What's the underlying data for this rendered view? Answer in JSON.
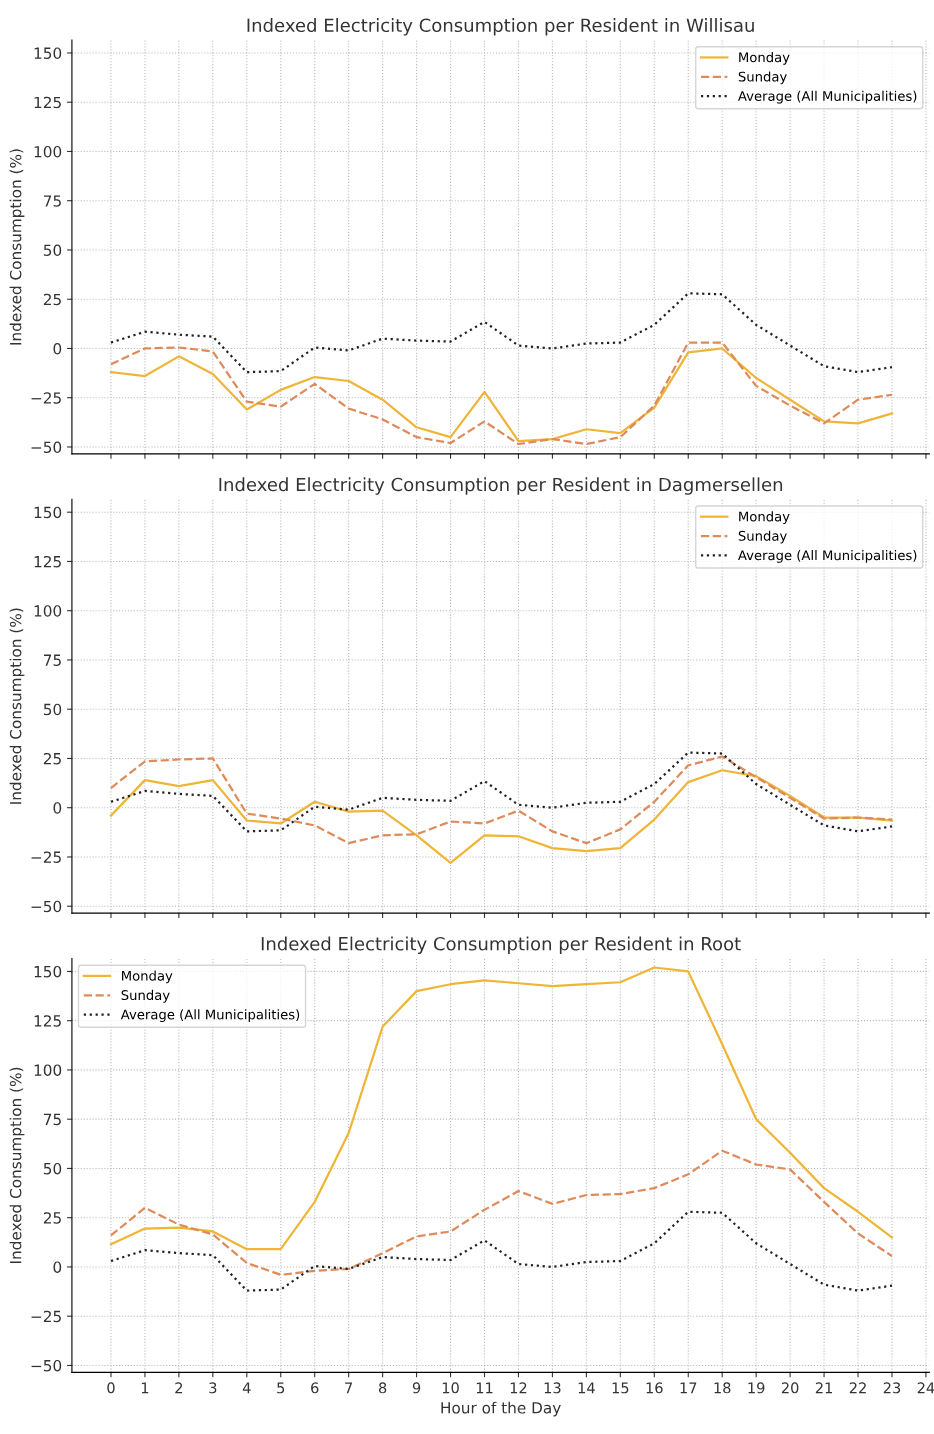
{
  "chart_data": [
    {
      "type": "line",
      "title": "Indexed Electricity Consumption per Resident in Willisau",
      "ylabel": "Indexed Consumption (%)",
      "x": [
        0,
        1,
        2,
        3,
        4,
        5,
        6,
        7,
        8,
        9,
        10,
        11,
        12,
        13,
        14,
        15,
        16,
        17,
        18,
        19,
        20,
        21,
        22,
        23
      ],
      "xlim": [
        -1.15,
        24.1
      ],
      "ylim": [
        -53.5,
        156.5
      ],
      "xticks": [
        0,
        1,
        2,
        3,
        4,
        5,
        6,
        7,
        8,
        9,
        10,
        11,
        12,
        13,
        14,
        15,
        16,
        17,
        18,
        19,
        20,
        21,
        22,
        23,
        24
      ],
      "yticks": [
        -50,
        -25,
        0,
        25,
        50,
        75,
        100,
        125,
        150
      ],
      "tick_labels": "y",
      "grid": true,
      "legend": "top right",
      "marker": "none",
      "series": [
        {
          "name": "Monday",
          "color": "#eeb536",
          "line_style": "solid",
          "values": [
            -12,
            -14,
            -4,
            -13,
            -31,
            -21,
            -14.5,
            -16.5,
            -26,
            -40,
            -45,
            -22,
            -47,
            -46,
            -41,
            -43,
            -30,
            -2,
            0,
            -15,
            -26,
            -37,
            -38,
            -33
          ]
        },
        {
          "name": "Sunday",
          "color": "#de8a5a",
          "line_style": "dashed",
          "values": [
            -8,
            0,
            0.5,
            -1.5,
            -27,
            -29.5,
            -18,
            -30.5,
            -36,
            -45,
            -48,
            -37,
            -48.5,
            -46,
            -48.5,
            -45,
            -29,
            3,
            3,
            -19,
            -29,
            -38,
            -26,
            -23.5
          ]
        },
        {
          "name": "Average (All Municipalities)",
          "color": "#222222",
          "line_style": "dotted",
          "values": [
            3,
            8.5,
            7,
            6,
            -12,
            -11.5,
            0.5,
            -1,
            5,
            4,
            3.5,
            13.5,
            1.5,
            0,
            2.5,
            3,
            12,
            28,
            27.5,
            12,
            1.5,
            -9,
            -12,
            -9.5
          ]
        }
      ]
    },
    {
      "type": "line",
      "title": "Indexed Electricity Consumption per Resident in Dagmersellen",
      "ylabel": "Indexed Consumption (%)",
      "x": [
        0,
        1,
        2,
        3,
        4,
        5,
        6,
        7,
        8,
        9,
        10,
        11,
        12,
        13,
        14,
        15,
        16,
        17,
        18,
        19,
        20,
        21,
        22,
        23
      ],
      "xlim": [
        -1.15,
        24.1
      ],
      "ylim": [
        -53.5,
        156.5
      ],
      "xticks": [
        0,
        1,
        2,
        3,
        4,
        5,
        6,
        7,
        8,
        9,
        10,
        11,
        12,
        13,
        14,
        15,
        16,
        17,
        18,
        19,
        20,
        21,
        22,
        23,
        24
      ],
      "yticks": [
        -50,
        -25,
        0,
        25,
        50,
        75,
        100,
        125,
        150
      ],
      "tick_labels": "y",
      "grid": true,
      "legend": "top right",
      "marker": "none",
      "series": [
        {
          "name": "Monday",
          "color": "#eeb536",
          "line_style": "solid",
          "values": [
            -4,
            14,
            11,
            14,
            -6.5,
            -8,
            3,
            -2,
            -1.5,
            -14,
            -28,
            -14,
            -14.5,
            -20.5,
            -22,
            -20.5,
            -6,
            13,
            19,
            16,
            6,
            -5,
            -5,
            -6.5
          ]
        },
        {
          "name": "Sunday",
          "color": "#de8a5a",
          "line_style": "dashed",
          "values": [
            10,
            23.5,
            24.5,
            25,
            -3,
            -5.5,
            -9,
            -18,
            -14,
            -13.5,
            -7,
            -8,
            -1.5,
            -12,
            -18,
            -11,
            3,
            21.5,
            26,
            15.5,
            5,
            -5.5,
            -5,
            -6
          ]
        },
        {
          "name": "Average (All Municipalities)",
          "color": "#222222",
          "line_style": "dotted",
          "values": [
            3,
            8.5,
            7,
            6,
            -12,
            -11.5,
            0.5,
            -1,
            5,
            4,
            3.5,
            13.5,
            1.5,
            0,
            2.5,
            3,
            12,
            28,
            27.5,
            12,
            1.5,
            -9,
            -12,
            -9.5
          ]
        }
      ]
    },
    {
      "type": "line",
      "title": "Indexed Electricity Consumption per Resident in Root",
      "xlabel": "Hour of the Day",
      "ylabel": "Indexed Consumption (%)",
      "x": [
        0,
        1,
        2,
        3,
        4,
        5,
        6,
        7,
        8,
        9,
        10,
        11,
        12,
        13,
        14,
        15,
        16,
        17,
        18,
        19,
        20,
        21,
        22,
        23
      ],
      "xlim": [
        -1.15,
        24.1
      ],
      "ylim": [
        -53.5,
        156.5
      ],
      "xticks": [
        0,
        1,
        2,
        3,
        4,
        5,
        6,
        7,
        8,
        9,
        10,
        11,
        12,
        13,
        14,
        15,
        16,
        17,
        18,
        19,
        20,
        21,
        22,
        23,
        24
      ],
      "yticks": [
        -50,
        -25,
        0,
        25,
        50,
        75,
        100,
        125,
        150
      ],
      "grid": true,
      "legend": "top left",
      "marker": "none",
      "series": [
        {
          "name": "Monday",
          "color": "#eeb536",
          "line_style": "solid",
          "values": [
            11.5,
            19.5,
            20,
            18,
            9,
            9,
            33,
            68,
            122,
            140,
            143.5,
            145.5,
            144,
            142.5,
            143.5,
            144.5,
            152,
            150,
            113,
            75,
            58,
            40,
            28,
            15
          ]
        },
        {
          "name": "Sunday",
          "color": "#de8a5a",
          "line_style": "dashed",
          "values": [
            16,
            30,
            21.5,
            16.5,
            2,
            -4,
            -2,
            -1,
            7,
            15.5,
            18,
            29,
            38.5,
            32,
            36.5,
            37,
            40,
            47,
            59,
            52,
            49.5,
            33,
            17,
            5.5
          ]
        },
        {
          "name": "Average (All Municipalities)",
          "color": "#222222",
          "line_style": "dotted",
          "values": [
            3,
            8.5,
            7,
            6,
            -12,
            -11.5,
            0.5,
            -1,
            5,
            4,
            3.5,
            13.5,
            1.5,
            0,
            2.5,
            3,
            12,
            28,
            27.5,
            12,
            1.5,
            -9,
            -12,
            -9.5
          ]
        }
      ]
    }
  ]
}
